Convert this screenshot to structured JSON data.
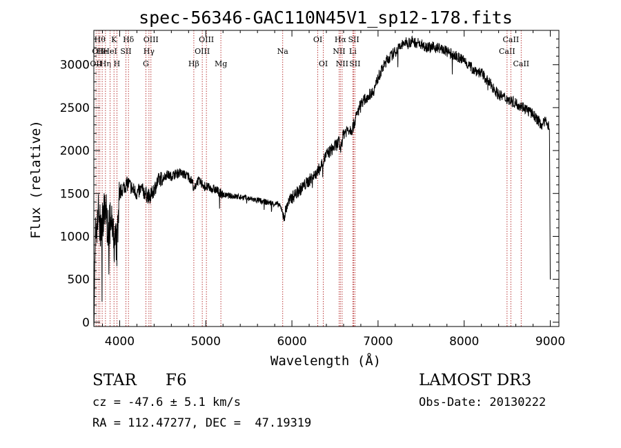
{
  "chart_data": {
    "type": "line",
    "title": "spec-56346-GAC110N45V1_sp12-178.fits",
    "xlabel": "Wavelength (Å)",
    "ylabel": "Flux (relative)",
    "xlim": [
      3700,
      9100
    ],
    "ylim": [
      -50,
      3400
    ],
    "x_ticks": [
      4000,
      5000,
      6000,
      7000,
      8000,
      9000
    ],
    "y_ticks": [
      0,
      500,
      1000,
      1500,
      2000,
      2500,
      3000
    ],
    "line_color": "#000000",
    "marker_color": "#b22222",
    "spectrum_anchors": [
      [
        3700,
        20
      ],
      [
        3720,
        1000
      ],
      [
        3750,
        1300
      ],
      [
        3780,
        1050
      ],
      [
        3810,
        1250
      ],
      [
        3840,
        1300
      ],
      [
        3870,
        1050
      ],
      [
        3900,
        1200
      ],
      [
        3935,
        900
      ],
      [
        3970,
        1000
      ],
      [
        4000,
        1500
      ],
      [
        4050,
        1580
      ],
      [
        4100,
        1620
      ],
      [
        4150,
        1550
      ],
      [
        4200,
        1500
      ],
      [
        4250,
        1550
      ],
      [
        4300,
        1500
      ],
      [
        4350,
        1450
      ],
      [
        4400,
        1550
      ],
      [
        4450,
        1650
      ],
      [
        4500,
        1680
      ],
      [
        4550,
        1720
      ],
      [
        4600,
        1700
      ],
      [
        4650,
        1730
      ],
      [
        4700,
        1740
      ],
      [
        4750,
        1720
      ],
      [
        4800,
        1700
      ],
      [
        4850,
        1620
      ],
      [
        4861,
        1530
      ],
      [
        4900,
        1650
      ],
      [
        4950,
        1620
      ],
      [
        5000,
        1580
      ],
      [
        5050,
        1560
      ],
      [
        5100,
        1550
      ],
      [
        5150,
        1520
      ],
      [
        5200,
        1480
      ],
      [
        5300,
        1470
      ],
      [
        5400,
        1460
      ],
      [
        5500,
        1440
      ],
      [
        5600,
        1420
      ],
      [
        5700,
        1400
      ],
      [
        5800,
        1380
      ],
      [
        5850,
        1370
      ],
      [
        5890,
        1300
      ],
      [
        5900,
        1200
      ],
      [
        5950,
        1380
      ],
      [
        6000,
        1450
      ],
      [
        6050,
        1500
      ],
      [
        6100,
        1550
      ],
      [
        6150,
        1600
      ],
      [
        6200,
        1650
      ],
      [
        6250,
        1700
      ],
      [
        6300,
        1750
      ],
      [
        6350,
        1850
      ],
      [
        6400,
        1950
      ],
      [
        6450,
        2000
      ],
      [
        6500,
        2050
      ],
      [
        6550,
        2100
      ],
      [
        6563,
        2000
      ],
      [
        6600,
        2200
      ],
      [
        6650,
        2250
      ],
      [
        6700,
        2250
      ],
      [
        6750,
        2400
      ],
      [
        6800,
        2550
      ],
      [
        6850,
        2600
      ],
      [
        6900,
        2650
      ],
      [
        6950,
        2700
      ],
      [
        7000,
        2850
      ],
      [
        7050,
        2950
      ],
      [
        7100,
        3050
      ],
      [
        7150,
        3100
      ],
      [
        7200,
        3150
      ],
      [
        7250,
        3200
      ],
      [
        7300,
        3250
      ],
      [
        7400,
        3270
      ],
      [
        7500,
        3240
      ],
      [
        7600,
        3200
      ],
      [
        7700,
        3200
      ],
      [
        7800,
        3150
      ],
      [
        7900,
        3100
      ],
      [
        8000,
        3050
      ],
      [
        8100,
        2950
      ],
      [
        8200,
        2900
      ],
      [
        8300,
        2780
      ],
      [
        8400,
        2650
      ],
      [
        8500,
        2600
      ],
      [
        8600,
        2550
      ],
      [
        8700,
        2500
      ],
      [
        8800,
        2420
      ],
      [
        8900,
        2300
      ],
      [
        8960,
        2350
      ],
      [
        8990,
        2250
      ],
      [
        9000,
        500
      ]
    ],
    "line_markers": [
      {
        "wl": 3726,
        "label": "OII",
        "row": 2
      },
      {
        "wl": 3750,
        "label": "OII",
        "row": 1
      },
      {
        "wl": 3770,
        "label": "Hθ",
        "row": 0
      },
      {
        "wl": 3797,
        "label": "He",
        "row": 1
      },
      {
        "wl": 3835,
        "label": "Hη",
        "row": 2
      },
      {
        "wl": 3889,
        "label": "HeI",
        "row": 1
      },
      {
        "wl": 3934,
        "label": "K",
        "row": 0
      },
      {
        "wl": 3968,
        "label": "H",
        "row": 2
      },
      {
        "wl": 4072,
        "label": "SII",
        "row": 1
      },
      {
        "wl": 4102,
        "label": "Hδ",
        "row": 0
      },
      {
        "wl": 4304,
        "label": "G",
        "row": 2
      },
      {
        "wl": 4340,
        "label": "Hγ",
        "row": 1
      },
      {
        "wl": 4363,
        "label": "OIII",
        "row": 0
      },
      {
        "wl": 4861,
        "label": "Hβ",
        "row": 2
      },
      {
        "wl": 4959,
        "label": "OIII",
        "row": 1
      },
      {
        "wl": 5007,
        "label": "OIII",
        "row": 0
      },
      {
        "wl": 5175,
        "label": "Mg",
        "row": 2
      },
      {
        "wl": 5893,
        "label": "Na",
        "row": 1
      },
      {
        "wl": 6300,
        "label": "OI",
        "row": 0
      },
      {
        "wl": 6364,
        "label": "OI",
        "row": 2
      },
      {
        "wl": 6548,
        "label": "NII",
        "row": 1
      },
      {
        "wl": 6563,
        "label": "Hα",
        "row": 0
      },
      {
        "wl": 6583,
        "label": "NII",
        "row": 2
      },
      {
        "wl": 6707,
        "label": "Li",
        "row": 1
      },
      {
        "wl": 6717,
        "label": "SII",
        "row": 0
      },
      {
        "wl": 6731,
        "label": "SII",
        "row": 2
      },
      {
        "wl": 8498,
        "label": "CaII",
        "row": 1
      },
      {
        "wl": 8542,
        "label": "CaII",
        "row": 0
      },
      {
        "wl": 8662,
        "label": "CaII",
        "row": 2
      }
    ]
  },
  "footer": {
    "object_class": "STAR",
    "subclass": "F6",
    "survey": "LAMOST DR3",
    "redshift": "cz = -47.6 ± 5.1 km/s",
    "obs_date": "Obs-Date: 20130222",
    "coordinates": "RA = 112.47277, DEC =  47.19319"
  }
}
